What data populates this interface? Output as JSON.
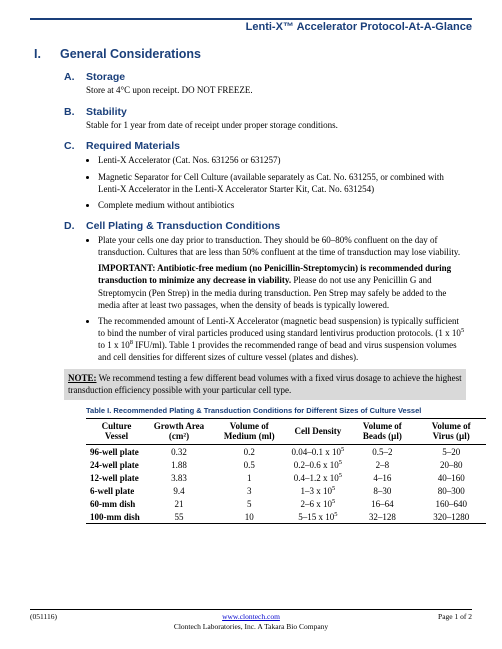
{
  "header": {
    "title": "Lenti-X™ Accelerator Protocol-At-A-Glance"
  },
  "h1": {
    "num": "I.",
    "title": "General Considerations"
  },
  "sections": {
    "A": {
      "letter": "A.",
      "title": "Storage",
      "text": "Store at 4°C upon receipt. DO NOT FREEZE."
    },
    "B": {
      "letter": "B.",
      "title": "Stability",
      "text": "Stable for 1 year from date of receipt under proper storage conditions."
    },
    "C": {
      "letter": "C.",
      "title": "Required Materials",
      "bullets": [
        "Lenti-X Accelerator (Cat. Nos. 631256 or 631257)",
        "Magnetic Separator for Cell Culture (available separately as Cat. No. 631255, or combined with Lenti-X Accelerator in the Lenti-X Accelerator Starter Kit, Cat. No. 631254)",
        "Complete medium without antibiotics"
      ]
    },
    "D": {
      "letter": "D.",
      "title": "Cell Plating & Transduction Conditions",
      "b1": "Plate your cells one day prior to transduction. They should be 60–80% confluent on the day of transduction. Cultures that are less than 50% confluent at the time of transduction may lose viability.",
      "imp_label": "IMPORTANT: ",
      "imp_bold": "Antibiotic-free medium (no Penicillin-Streptomycin) is recommended during transduction to minimize any decrease in viability.",
      "imp_rest": " Please do not use any Penicillin G and Streptomycin (Pen Strep) in the media during transduction. Pen Strep may safely be added to the media after at least two passages, when the density of beads is typically lowered.",
      "b2a": "The recommended amount of Lenti-X Accelerator (magnetic bead suspension) is typically sufficient to bind the number of viral particles produced using standard lentivirus production protocols. (1 x 10",
      "b2b": " to 1 x 10",
      "b2c": " IFU/ml). Table 1 provides the recommended range of bead and virus suspension volumes and cell densities for different sizes of culture vessel (plates and dishes).",
      "exp1": "5",
      "exp2": "8",
      "note_label": "NOTE:",
      "note_text": " We recommend testing a few different bead volumes with a fixed virus dosage to achieve the highest transduction efficiency possible with your particular cell type.",
      "table_caption": "Table I. Recommended Plating & Transduction Conditions for Different Sizes of Culture Vessel",
      "headers": [
        "Culture Vessel",
        "Growth Area (cm²)",
        "Volume of Medium (ml)",
        "Cell Density",
        "Volume of Beads (µl)",
        "Volume of Virus (µl)"
      ],
      "rows": [
        {
          "v": "96-well plate",
          "ga": "0.32",
          "vm": "0.2",
          "cd1": "0.04–0.1 x 10",
          "cde": "5",
          "vb": "0.5–2",
          "vv": "5–20"
        },
        {
          "v": "24-well plate",
          "ga": "1.88",
          "vm": "0.5",
          "cd1": "0.2–0.6 x 10",
          "cde": "5",
          "vb": "2–8",
          "vv": "20–80"
        },
        {
          "v": "12-well plate",
          "ga": "3.83",
          "vm": "1",
          "cd1": "0.4–1.2 x 10",
          "cde": "5",
          "vb": "4–16",
          "vv": "40–160"
        },
        {
          "v": "6-well plate",
          "ga": "9.4",
          "vm": "3",
          "cd1": "1–3 x 10",
          "cde": "5",
          "vb": "8–30",
          "vv": "80–300"
        },
        {
          "v": "60-mm dish",
          "ga": "21",
          "vm": "5",
          "cd1": "2–6 x 10",
          "cde": "5",
          "vb": "16–64",
          "vv": "160–640"
        },
        {
          "v": "100-mm dish",
          "ga": "55",
          "vm": "10",
          "cd1": "5–15 x 10",
          "cde": "5",
          "vb": "32–128",
          "vv": "320–1280"
        }
      ]
    }
  },
  "footer": {
    "left": "(051116)",
    "link": "www.clontech.com",
    "sub": "Clontech Laboratories, Inc. A Takara Bio Company",
    "right": "Page 1 of 2"
  }
}
